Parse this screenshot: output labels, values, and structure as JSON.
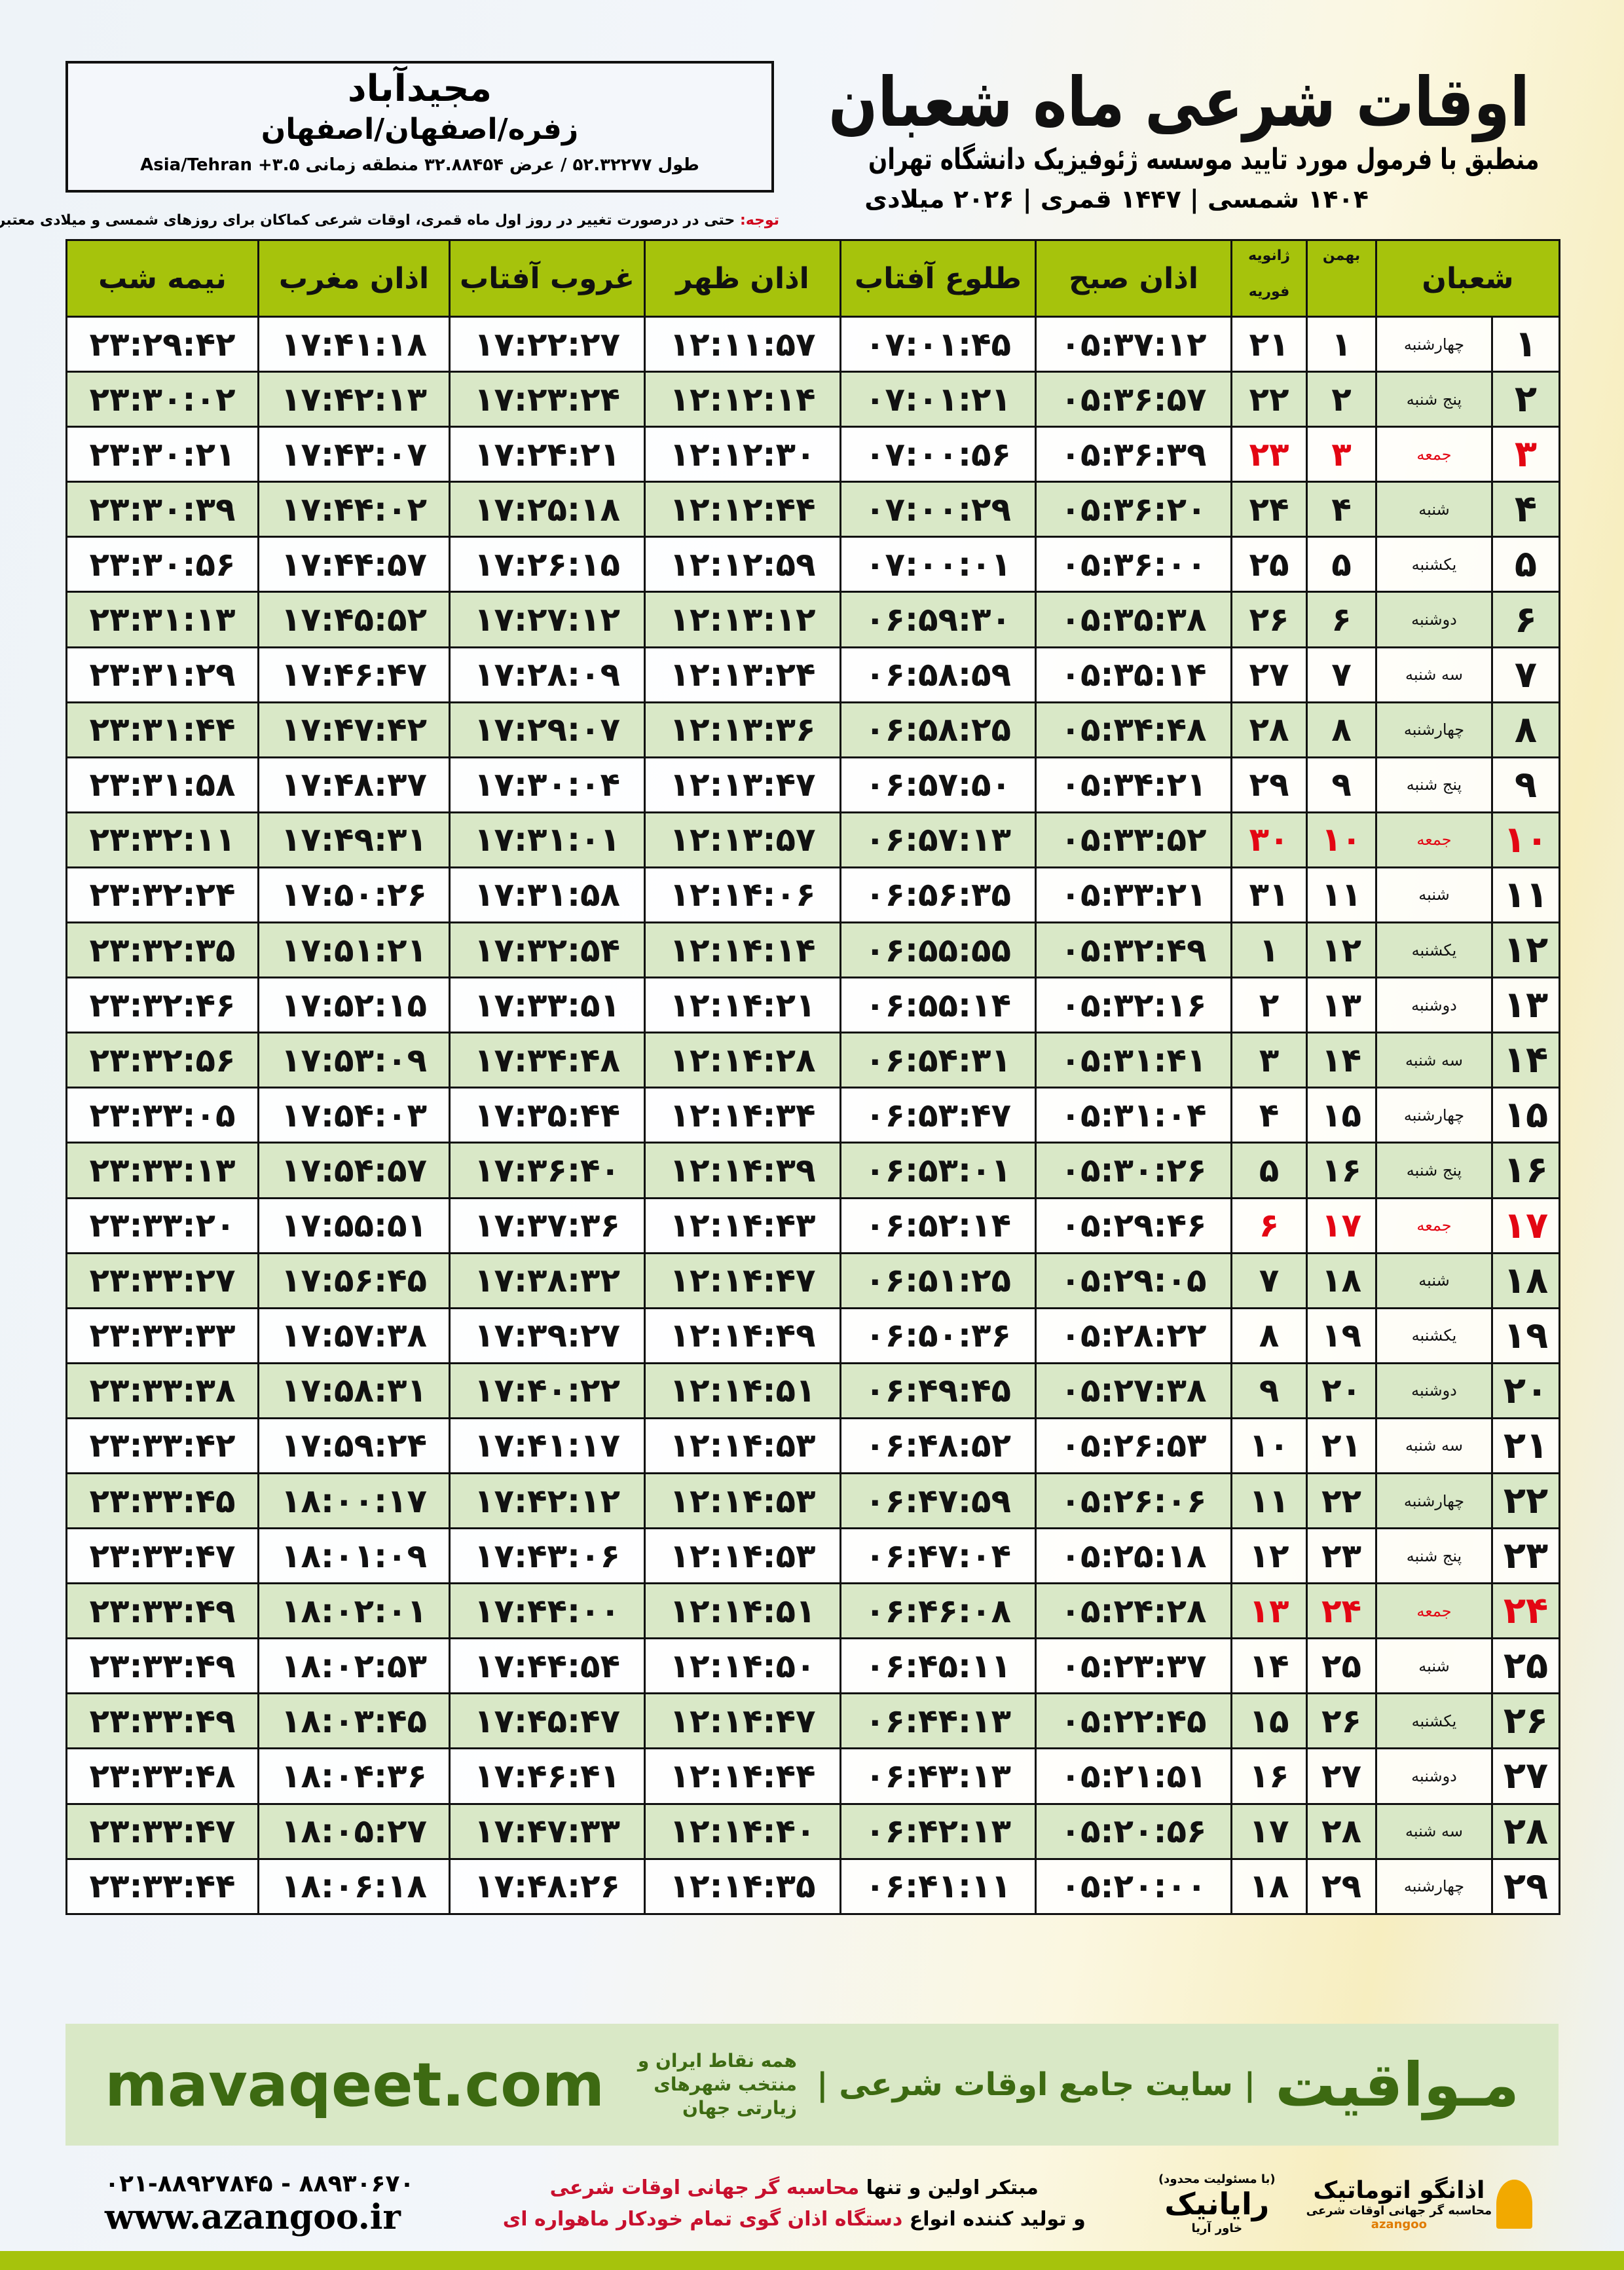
{
  "location": {
    "city": "مجیدآباد",
    "province": "زفره/اصفهان/اصفهان",
    "coords": "طول ۵۲.۳۲۲۷۷ / عرض ۳۲.۸۸۴۵۴ منطقه زمانی ۳.۵+ Asia/Tehran"
  },
  "header": {
    "title": "اوقات شرعی ماه شعبان",
    "subtitle": "منطبق با فرمول مورد تایید موسسه ژئوفیزیک دانشگاه تهران",
    "dates": "۱۴۰۴ شمسی | ۱۴۴۷ قمری | ۲۰۲۶ میلادی"
  },
  "note": {
    "label": "توجه:",
    "text": " حتی در درصورت تغییر در روز اول ماه قمری، اوقات شرعی کماکان برای روزهای شمسی و میلادی معتبر است."
  },
  "colors": {
    "header_green": "#a6c30c",
    "row_green": "#d9e8c7",
    "friday_red": "#e30613",
    "brand_green": "#3d6a12"
  },
  "table": {
    "headers": {
      "month": "شعبان",
      "bahman": "بهمن",
      "january": "ژانویه",
      "february": "فوریه",
      "sobh": "اذان صبح",
      "tolu": "طلوع آفتاب",
      "zohr": "اذان ظهر",
      "ghorub": "غروب آفتاب",
      "maghrib": "اذان مغرب",
      "nimeh": "نیمه شب"
    },
    "rows": [
      [
        "۱",
        "چهارشنبه",
        "۱",
        "۲۱",
        "۰۵:۳۷:۱۲",
        "۰۷:۰۱:۴۵",
        "۱۲:۱۱:۵۷",
        "۱۷:۲۲:۲۷",
        "۱۷:۴۱:۱۸",
        "۲۳:۲۹:۴۲"
      ],
      [
        "۲",
        "پنج شنبه",
        "۲",
        "۲۲",
        "۰۵:۳۶:۵۷",
        "۰۷:۰۱:۲۱",
        "۱۲:۱۲:۱۴",
        "۱۷:۲۳:۲۴",
        "۱۷:۴۲:۱۳",
        "۲۳:۳۰:۰۲"
      ],
      [
        "۳",
        "جمعه",
        "۳",
        "۲۳",
        "۰۵:۳۶:۳۹",
        "۰۷:۰۰:۵۶",
        "۱۲:۱۲:۳۰",
        "۱۷:۲۴:۲۱",
        "۱۷:۴۳:۰۷",
        "۲۳:۳۰:۲۱"
      ],
      [
        "۴",
        "شنبه",
        "۴",
        "۲۴",
        "۰۵:۳۶:۲۰",
        "۰۷:۰۰:۲۹",
        "۱۲:۱۲:۴۴",
        "۱۷:۲۵:۱۸",
        "۱۷:۴۴:۰۲",
        "۲۳:۳۰:۳۹"
      ],
      [
        "۵",
        "یکشنبه",
        "۵",
        "۲۵",
        "۰۵:۳۶:۰۰",
        "۰۷:۰۰:۰۱",
        "۱۲:۱۲:۵۹",
        "۱۷:۲۶:۱۵",
        "۱۷:۴۴:۵۷",
        "۲۳:۳۰:۵۶"
      ],
      [
        "۶",
        "دوشنبه",
        "۶",
        "۲۶",
        "۰۵:۳۵:۳۸",
        "۰۶:۵۹:۳۰",
        "۱۲:۱۳:۱۲",
        "۱۷:۲۷:۱۲",
        "۱۷:۴۵:۵۲",
        "۲۳:۳۱:۱۳"
      ],
      [
        "۷",
        "سه شنبه",
        "۷",
        "۲۷",
        "۰۵:۳۵:۱۴",
        "۰۶:۵۸:۵۹",
        "۱۲:۱۳:۲۴",
        "۱۷:۲۸:۰۹",
        "۱۷:۴۶:۴۷",
        "۲۳:۳۱:۲۹"
      ],
      [
        "۸",
        "چهارشنبه",
        "۸",
        "۲۸",
        "۰۵:۳۴:۴۸",
        "۰۶:۵۸:۲۵",
        "۱۲:۱۳:۳۶",
        "۱۷:۲۹:۰۷",
        "۱۷:۴۷:۴۲",
        "۲۳:۳۱:۴۴"
      ],
      [
        "۹",
        "پنج شنبه",
        "۹",
        "۲۹",
        "۰۵:۳۴:۲۱",
        "۰۶:۵۷:۵۰",
        "۱۲:۱۳:۴۷",
        "۱۷:۳۰:۰۴",
        "۱۷:۴۸:۳۷",
        "۲۳:۳۱:۵۸"
      ],
      [
        "۱۰",
        "جمعه",
        "۱۰",
        "۳۰",
        "۰۵:۳۳:۵۲",
        "۰۶:۵۷:۱۳",
        "۱۲:۱۳:۵۷",
        "۱۷:۳۱:۰۱",
        "۱۷:۴۹:۳۱",
        "۲۳:۳۲:۱۱"
      ],
      [
        "۱۱",
        "شنبه",
        "۱۱",
        "۳۱",
        "۰۵:۳۳:۲۱",
        "۰۶:۵۶:۳۵",
        "۱۲:۱۴:۰۶",
        "۱۷:۳۱:۵۸",
        "۱۷:۵۰:۲۶",
        "۲۳:۳۲:۲۴"
      ],
      [
        "۱۲",
        "یکشنبه",
        "۱۲",
        "۱",
        "۰۵:۳۲:۴۹",
        "۰۶:۵۵:۵۵",
        "۱۲:۱۴:۱۴",
        "۱۷:۳۲:۵۴",
        "۱۷:۵۱:۲۱",
        "۲۳:۳۲:۳۵"
      ],
      [
        "۱۳",
        "دوشنبه",
        "۱۳",
        "۲",
        "۰۵:۳۲:۱۶",
        "۰۶:۵۵:۱۴",
        "۱۲:۱۴:۲۱",
        "۱۷:۳۳:۵۱",
        "۱۷:۵۲:۱۵",
        "۲۳:۳۲:۴۶"
      ],
      [
        "۱۴",
        "سه شنبه",
        "۱۴",
        "۳",
        "۰۵:۳۱:۴۱",
        "۰۶:۵۴:۳۱",
        "۱۲:۱۴:۲۸",
        "۱۷:۳۴:۴۸",
        "۱۷:۵۳:۰۹",
        "۲۳:۳۲:۵۶"
      ],
      [
        "۱۵",
        "چهارشنبه",
        "۱۵",
        "۴",
        "۰۵:۳۱:۰۴",
        "۰۶:۵۳:۴۷",
        "۱۲:۱۴:۳۴",
        "۱۷:۳۵:۴۴",
        "۱۷:۵۴:۰۳",
        "۲۳:۳۳:۰۵"
      ],
      [
        "۱۶",
        "پنج شنبه",
        "۱۶",
        "۵",
        "۰۵:۳۰:۲۶",
        "۰۶:۵۳:۰۱",
        "۱۲:۱۴:۳۹",
        "۱۷:۳۶:۴۰",
        "۱۷:۵۴:۵۷",
        "۲۳:۳۳:۱۳"
      ],
      [
        "۱۷",
        "جمعه",
        "۱۷",
        "۶",
        "۰۵:۲۹:۴۶",
        "۰۶:۵۲:۱۴",
        "۱۲:۱۴:۴۳",
        "۱۷:۳۷:۳۶",
        "۱۷:۵۵:۵۱",
        "۲۳:۳۳:۲۰"
      ],
      [
        "۱۸",
        "شنبه",
        "۱۸",
        "۷",
        "۰۵:۲۹:۰۵",
        "۰۶:۵۱:۲۵",
        "۱۲:۱۴:۴۷",
        "۱۷:۳۸:۳۲",
        "۱۷:۵۶:۴۵",
        "۲۳:۳۳:۲۷"
      ],
      [
        "۱۹",
        "یکشنبه",
        "۱۹",
        "۸",
        "۰۵:۲۸:۲۲",
        "۰۶:۵۰:۳۶",
        "۱۲:۱۴:۴۹",
        "۱۷:۳۹:۲۷",
        "۱۷:۵۷:۳۸",
        "۲۳:۳۳:۳۳"
      ],
      [
        "۲۰",
        "دوشنبه",
        "۲۰",
        "۹",
        "۰۵:۲۷:۳۸",
        "۰۶:۴۹:۴۵",
        "۱۲:۱۴:۵۱",
        "۱۷:۴۰:۲۲",
        "۱۷:۵۸:۳۱",
        "۲۳:۳۳:۳۸"
      ],
      [
        "۲۱",
        "سه شنبه",
        "۲۱",
        "۱۰",
        "۰۵:۲۶:۵۳",
        "۰۶:۴۸:۵۲",
        "۱۲:۱۴:۵۳",
        "۱۷:۴۱:۱۷",
        "۱۷:۵۹:۲۴",
        "۲۳:۳۳:۴۲"
      ],
      [
        "۲۲",
        "چهارشنبه",
        "۲۲",
        "۱۱",
        "۰۵:۲۶:۰۶",
        "۰۶:۴۷:۵۹",
        "۱۲:۱۴:۵۳",
        "۱۷:۴۲:۱۲",
        "۱۸:۰۰:۱۷",
        "۲۳:۳۳:۴۵"
      ],
      [
        "۲۳",
        "پنج شنبه",
        "۲۳",
        "۱۲",
        "۰۵:۲۵:۱۸",
        "۰۶:۴۷:۰۴",
        "۱۲:۱۴:۵۳",
        "۱۷:۴۳:۰۶",
        "۱۸:۰۱:۰۹",
        "۲۳:۳۳:۴۷"
      ],
      [
        "۲۴",
        "جمعه",
        "۲۴",
        "۱۳",
        "۰۵:۲۴:۲۸",
        "۰۶:۴۶:۰۸",
        "۱۲:۱۴:۵۱",
        "۱۷:۴۴:۰۰",
        "۱۸:۰۲:۰۱",
        "۲۳:۳۳:۴۹"
      ],
      [
        "۲۵",
        "شنبه",
        "۲۵",
        "۱۴",
        "۰۵:۲۳:۳۷",
        "۰۶:۴۵:۱۱",
        "۱۲:۱۴:۵۰",
        "۱۷:۴۴:۵۴",
        "۱۸:۰۲:۵۳",
        "۲۳:۳۳:۴۹"
      ],
      [
        "۲۶",
        "یکشنبه",
        "۲۶",
        "۱۵",
        "۰۵:۲۲:۴۵",
        "۰۶:۴۴:۱۳",
        "۱۲:۱۴:۴۷",
        "۱۷:۴۵:۴۷",
        "۱۸:۰۳:۴۵",
        "۲۳:۳۳:۴۹"
      ],
      [
        "۲۷",
        "دوشنبه",
        "۲۷",
        "۱۶",
        "۰۵:۲۱:۵۱",
        "۰۶:۴۳:۱۳",
        "۱۲:۱۴:۴۴",
        "۱۷:۴۶:۴۱",
        "۱۸:۰۴:۳۶",
        "۲۳:۳۳:۴۸"
      ],
      [
        "۲۸",
        "سه شنبه",
        "۲۸",
        "۱۷",
        "۰۵:۲۰:۵۶",
        "۰۶:۴۲:۱۳",
        "۱۲:۱۴:۴۰",
        "۱۷:۴۷:۳۳",
        "۱۸:۰۵:۲۷",
        "۲۳:۳۳:۴۷"
      ],
      [
        "۲۹",
        "چهارشنبه",
        "۲۹",
        "۱۸",
        "۰۵:۲۰:۰۰",
        "۰۶:۴۱:۱۱",
        "۱۲:۱۴:۳۵",
        "۱۷:۴۸:۲۶",
        "۱۸:۰۶:۱۸",
        "۲۳:۳۳:۴۴"
      ]
    ]
  },
  "ad": {
    "brand": "مـواقیت",
    "slogan": "| سایت جامع اوقات شرعی |",
    "sub": "همه نقاط ایران و منتخب شهرهای زیارتی جهان",
    "url": "mavaqeet.com"
  },
  "footer": {
    "phone": "۰۲۱-۸۸۹۲۷۸۴۵ - ۸۸۹۳۰۶۷۰",
    "web": "www.azangoo.ir",
    "promo1a": "مبتکر اولین و تنها ",
    "promo1b": "محاسبه گر جهانی اوقات شرعی",
    "promo2a": "و تولید کننده انواع ",
    "promo2b": "دستگاه اذان گوی تمام خودکار ماهواره ای",
    "logo_rayanik": "رایانیک",
    "logo_rayanik_sub": "(با مسئولیت محدود)",
    "logo_rayanik_side": "خاور آریا",
    "logo_azangoo": "اذانگو اتوماتیک",
    "logo_azangoo_sub": "محاسبه گر جهانی اوقات شرعی",
    "logo_azangoo_en": "azangoo"
  }
}
